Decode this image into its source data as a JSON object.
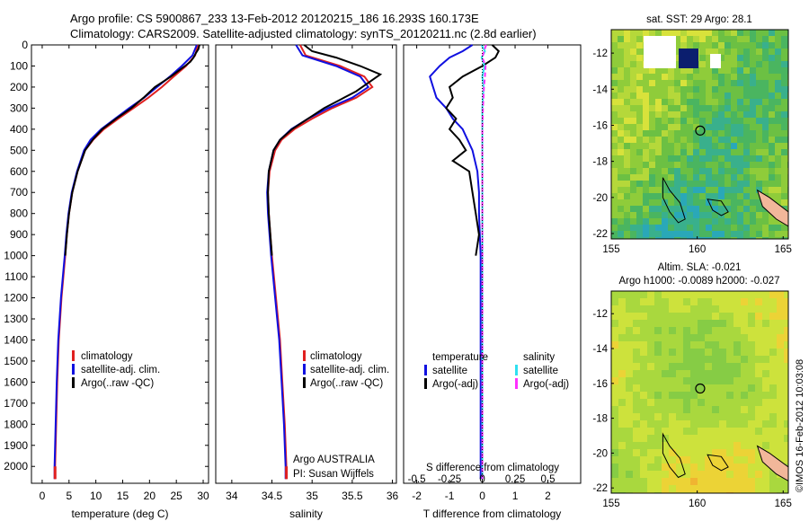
{
  "header": {
    "title_line1": "Argo profile: CS 5900867_233 13-Feb-2012 20120215_186 16.293S 160.173E",
    "title_line2": "Climatology: CARS2009. Satellite-adjusted climatology: synTS_20120211.nc (2.8d earlier)"
  },
  "colors": {
    "climatology": "#e02020",
    "satellite": "#1010e0",
    "argo": "#000000",
    "satellite_salinity": "#30e0f0",
    "argo_salinity": "#ff30ff"
  },
  "chart_data": [
    {
      "type": "line",
      "panel": "temperature",
      "xlabel": "temperature (deg C)",
      "ylabel": "",
      "xlim": [
        -2,
        31
      ],
      "ylim": [
        2080,
        0
      ],
      "xticks": [
        0,
        5,
        10,
        15,
        20,
        25,
        30
      ],
      "yticks": [
        0,
        100,
        200,
        300,
        400,
        500,
        600,
        700,
        800,
        900,
        1000,
        1100,
        1200,
        1300,
        1400,
        1500,
        1600,
        1700,
        1800,
        1900,
        2000
      ],
      "legend": [
        "climatology",
        "satellite-adj. clim.",
        "Argo(..raw -QC)"
      ],
      "legend_position": "bottom-right",
      "series": [
        {
          "name": "climatology",
          "color": "#e02020",
          "depth": [
            0,
            50,
            100,
            150,
            200,
            250,
            300,
            350,
            400,
            450,
            500,
            600,
            700,
            800,
            900,
            1000,
            1200,
            1400,
            1600,
            1800,
            2000,
            2060
          ],
          "values": [
            29.0,
            28.5,
            26.8,
            24.5,
            22.3,
            19.8,
            17.0,
            14.2,
            11.5,
            9.5,
            8.0,
            6.6,
            5.6,
            5.0,
            4.6,
            4.3,
            3.6,
            3.1,
            2.8,
            2.6,
            2.4,
            2.4
          ]
        },
        {
          "name": "satellite-adj. clim.",
          "color": "#1010e0",
          "depth": [
            0,
            50,
            100,
            150,
            200,
            250,
            300,
            350,
            400,
            450,
            500,
            600,
            700,
            800,
            900,
            1000,
            1200,
            1400,
            1600,
            1800,
            2000,
            2060
          ],
          "values": [
            28.8,
            28.0,
            26.0,
            23.8,
            21.4,
            19.0,
            16.2,
            13.6,
            11.0,
            9.0,
            7.8,
            6.5,
            5.5,
            4.9,
            4.5,
            4.2,
            3.5,
            3.0,
            2.7,
            2.5,
            2.3,
            2.3
          ]
        },
        {
          "name": "Argo(..raw -QC)",
          "color": "#000000",
          "depth": [
            0,
            20,
            40,
            60,
            80,
            100,
            150,
            200,
            250,
            300,
            350,
            400,
            450,
            500,
            600,
            700,
            800,
            900,
            1000
          ],
          "values": [
            29.3,
            29.1,
            28.6,
            28.2,
            27.6,
            26.6,
            24.0,
            21.0,
            18.9,
            16.6,
            13.8,
            11.2,
            9.4,
            8.0,
            6.6,
            5.6,
            5.0,
            4.6,
            4.3
          ]
        }
      ]
    },
    {
      "type": "line",
      "panel": "salinity",
      "xlabel": "salinity",
      "xlim": [
        33.8,
        36.05
      ],
      "ylim": [
        2080,
        0
      ],
      "xticks": [
        34,
        34.5,
        35,
        35.5,
        36
      ],
      "xticklabels": [
        "34",
        "34.5",
        "35",
        "35.5",
        "36"
      ],
      "legend": [
        "climatology",
        "satellite-adj. clim.",
        "Argo(..raw -QC)"
      ],
      "legend_position": "bottom-right",
      "annotation": [
        "Argo AUSTRALIA",
        "PI: Susan Wijffels"
      ],
      "series": [
        {
          "name": "climatology",
          "color": "#e02020",
          "depth": [
            0,
            50,
            100,
            150,
            200,
            250,
            300,
            350,
            400,
            450,
            500,
            600,
            700,
            800,
            1000,
            1200,
            1400,
            1600,
            1800,
            2000,
            2060
          ],
          "values": [
            34.85,
            34.92,
            35.35,
            35.65,
            35.75,
            35.55,
            35.25,
            35.0,
            34.78,
            34.62,
            34.54,
            34.47,
            34.45,
            34.46,
            34.5,
            34.55,
            34.6,
            34.63,
            34.66,
            34.68,
            34.68
          ]
        },
        {
          "name": "satellite-adj. clim.",
          "color": "#1010e0",
          "depth": [
            0,
            50,
            100,
            150,
            200,
            250,
            300,
            350,
            400,
            450,
            500,
            600,
            700,
            800,
            1000,
            1200,
            1400,
            1600,
            1800,
            2000,
            2060
          ],
          "values": [
            34.8,
            34.88,
            35.3,
            35.6,
            35.7,
            35.5,
            35.2,
            34.95,
            34.74,
            34.6,
            34.52,
            34.46,
            34.44,
            34.45,
            34.49,
            34.54,
            34.59,
            34.62,
            34.65,
            34.67,
            34.67
          ]
        },
        {
          "name": "Argo(..raw -QC)",
          "color": "#000000",
          "depth": [
            0,
            30,
            60,
            100,
            140,
            180,
            220,
            260,
            300,
            350,
            400,
            450,
            500,
            600,
            700,
            800,
            1000
          ],
          "values": [
            34.9,
            35.0,
            35.3,
            35.6,
            35.85,
            35.7,
            35.55,
            35.35,
            35.15,
            34.95,
            34.75,
            34.6,
            34.52,
            34.46,
            34.45,
            34.46,
            34.5
          ]
        }
      ]
    },
    {
      "type": "line",
      "panel": "difference",
      "xlabel": "T difference from climatology",
      "xlabel_top": "S difference from climatology",
      "xlim": [
        -2.4,
        3.0
      ],
      "ylim": [
        2080,
        0
      ],
      "xticks": [
        -2,
        -1,
        0,
        1,
        2
      ],
      "xticks_top": [
        "-0.5",
        "-0.25",
        "0",
        "0.25",
        "0.5"
      ],
      "legend_temperature": {
        "title": "temperature",
        "items": [
          "satellite",
          "Argo(-adj)"
        ]
      },
      "legend_salinity": {
        "title": "salinity",
        "items": [
          "satellite",
          "Argo(-adj)"
        ]
      },
      "series": [
        {
          "name": "temperature satellite",
          "color": "#1010e0",
          "depth": [
            0,
            30,
            60,
            100,
            150,
            200,
            250,
            300,
            350,
            400,
            500,
            600,
            700,
            800,
            1000,
            1200,
            1400,
            1600,
            1800,
            2000,
            2060
          ],
          "values": [
            -0.3,
            -0.6,
            -1.0,
            -1.3,
            -1.6,
            -1.5,
            -1.4,
            -1.1,
            -0.9,
            -0.6,
            -0.3,
            -0.15,
            -0.1,
            -0.1,
            -0.05,
            -0.05,
            -0.05,
            -0.05,
            -0.05,
            -0.05,
            -0.05
          ]
        },
        {
          "name": "temperature Argo(-adj)",
          "color": "#000000",
          "depth": [
            0,
            30,
            60,
            100,
            150,
            200,
            250,
            300,
            350,
            400,
            450,
            500,
            550,
            600,
            700,
            800,
            900,
            1000
          ],
          "values": [
            0.3,
            0.5,
            0.4,
            0.0,
            -0.6,
            -1.0,
            -0.9,
            -1.1,
            -0.8,
            -1.0,
            -0.7,
            -0.5,
            -0.9,
            -0.4,
            -0.3,
            -0.2,
            -0.1,
            -0.2
          ]
        },
        {
          "name": "salinity satellite",
          "color": "#30e0f0",
          "depth": [
            0,
            30,
            60,
            100,
            150,
            200,
            300,
            400,
            600,
            800,
            1000,
            1400,
            1800,
            2060
          ],
          "values": [
            -0.02,
            0.08,
            -0.02,
            0.07,
            0.0,
            0.04,
            0.0,
            0.0,
            0.0,
            0.0,
            0.0,
            0.0,
            0.0,
            0.0
          ]
        },
        {
          "name": "salinity Argo(-adj)",
          "color": "#ff30ff",
          "depth": [
            0,
            30,
            60,
            100,
            150,
            200,
            300,
            400,
            600,
            800,
            1000,
            1400,
            1800,
            2060
          ],
          "values": [
            0.12,
            0.05,
            0.0,
            0.1,
            0.08,
            0.05,
            0.02,
            0.0,
            0.0,
            0.0,
            0.0,
            0.0,
            0.0,
            0.0
          ]
        }
      ]
    },
    {
      "type": "heatmap",
      "panel": "sst_map",
      "title": "sat. SST: 29 Argo: 28.1",
      "xticks": [
        155,
        160,
        165
      ],
      "yticks": [
        -12,
        -14,
        -16,
        -18,
        -20,
        -22
      ],
      "xlim": [
        155,
        165.3
      ],
      "ylim": [
        -22.3,
        -10.7
      ],
      "float_position": {
        "lon": 160.173,
        "lat": -16.293
      }
    },
    {
      "type": "heatmap",
      "panel": "sla_map",
      "title_line1": "Altim. SLA: -0.021",
      "title_line2": "Argo h1000: -0.0089 h2000: -0.027",
      "xticks": [
        155,
        160,
        165
      ],
      "yticks": [
        -12,
        -14,
        -16,
        -18,
        -20,
        -22
      ],
      "xlim": [
        155,
        165.3
      ],
      "ylim": [
        -22.3,
        -10.7
      ],
      "float_position": {
        "lon": 160.173,
        "lat": -16.293
      }
    }
  ],
  "side_label": "©IMOS 16-Feb-2012 10:03:08"
}
